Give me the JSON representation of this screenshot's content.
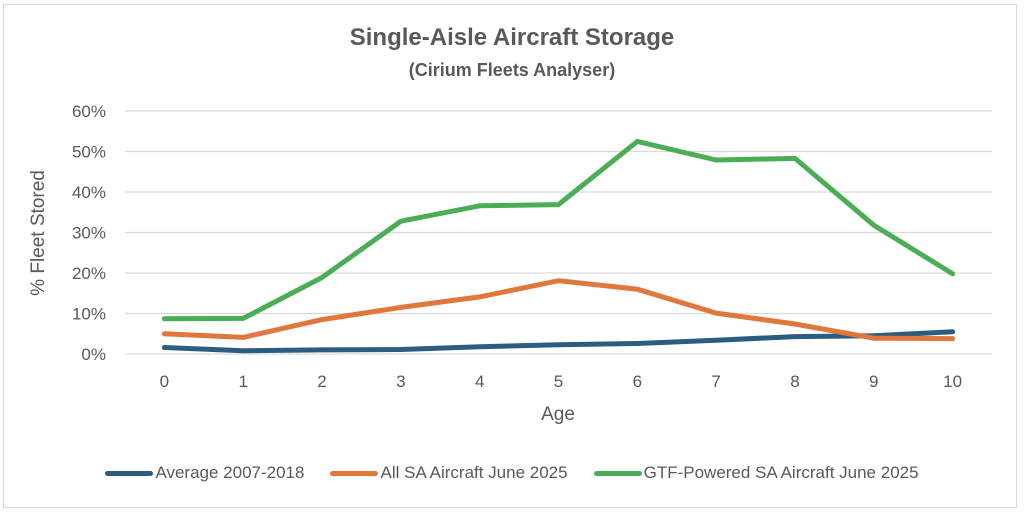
{
  "chart_data": {
    "type": "line",
    "title": "Single-Aisle Aircraft Storage",
    "subtitle": "(Cirium Fleets Analyser)",
    "xlabel": "Age",
    "ylabel": "% Fleet Stored",
    "x": [
      0,
      1,
      2,
      3,
      4,
      5,
      6,
      7,
      8,
      9,
      10
    ],
    "x_tick_labels": [
      "0",
      "1",
      "2",
      "3",
      "4",
      "5",
      "6",
      "7",
      "8",
      "9",
      "10"
    ],
    "ylim": [
      0,
      60
    ],
    "y_ticks": [
      0,
      10,
      20,
      30,
      40,
      50,
      60
    ],
    "y_tick_labels": [
      "0%",
      "10%",
      "20%",
      "30%",
      "40%",
      "50%",
      "60%"
    ],
    "grid": "horizontal",
    "legend_position": "bottom",
    "series": [
      {
        "name": "Average 2007-2018",
        "color": "#2C5D80",
        "values": [
          1.6,
          0.8,
          1.0,
          1.1,
          1.8,
          2.3,
          2.6,
          3.4,
          4.3,
          4.5,
          5.5
        ]
      },
      {
        "name": "All SA Aircraft June 2025",
        "color": "#E0773C",
        "values": [
          5.0,
          4.1,
          8.5,
          11.5,
          14.1,
          18.1,
          16.0,
          10.1,
          7.4,
          3.9,
          3.8
        ]
      },
      {
        "name": "GTF-Powered SA Aircraft June 2025",
        "color": "#4BAE56",
        "values": [
          8.7,
          8.8,
          18.9,
          32.8,
          36.6,
          36.9,
          52.5,
          47.9,
          48.3,
          31.8,
          19.8
        ]
      }
    ]
  }
}
